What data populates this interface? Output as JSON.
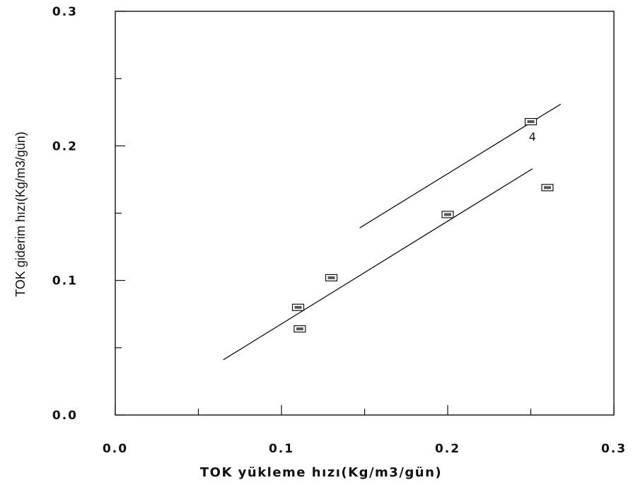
{
  "chart_data": {
    "type": "scatter",
    "xlabel": "TOK  yükleme  hızı(Kg/m3/gün)",
    "ylabel": "TOK giderim hızı(Kg/m3/gün)",
    "xlim": [
      0.0,
      0.3
    ],
    "ylim": [
      0.0,
      0.3
    ],
    "x_ticks": [
      "0.0",
      "0.1",
      "0.2",
      "0.3"
    ],
    "y_ticks": [
      "0.0",
      "0.1",
      "0.2",
      "0.3"
    ],
    "grid": false,
    "series": [
      {
        "values": [
          {
            "x": 0.11,
            "y": 0.08
          },
          {
            "x": 0.111,
            "y": 0.064
          },
          {
            "x": 0.13,
            "y": 0.102
          },
          {
            "x": 0.2,
            "y": 0.149
          },
          {
            "x": 0.25,
            "y": 0.218
          },
          {
            "x": 0.26,
            "y": 0.169
          }
        ]
      }
    ],
    "lines": [
      {
        "x": [
          0.065,
          0.251
        ],
        "y": [
          0.041,
          0.183
        ]
      },
      {
        "x": [
          0.147,
          0.268
        ],
        "y": [
          0.139,
          0.231
        ]
      }
    ],
    "annotations": [
      {
        "text": "4",
        "x": 0.251,
        "y": 0.207
      }
    ]
  }
}
